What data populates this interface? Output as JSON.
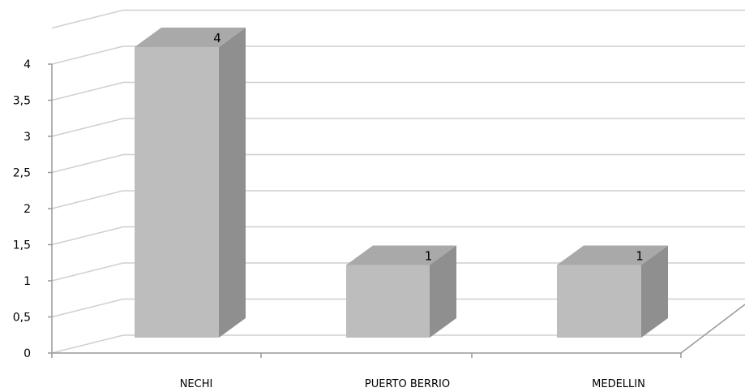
{
  "chart_data": {
    "type": "bar",
    "categories": [
      "NECHI",
      "PUERTO BERRIO",
      "MEDELLIN"
    ],
    "values": [
      4,
      1,
      1
    ],
    "ylim": [
      0,
      4
    ],
    "yticks": [
      "0",
      "0,5",
      "1",
      "1,5",
      "2",
      "2,5",
      "3",
      "3,5",
      "4"
    ],
    "data_labels": [
      "4",
      "1",
      "1"
    ],
    "grid": true,
    "colors": {
      "bar_front": "#bdbdbd",
      "bar_side": "#8f8f8f",
      "bar_top": "#a9a9a9",
      "grid": "#cfcfcf",
      "axis": "#999999"
    }
  }
}
